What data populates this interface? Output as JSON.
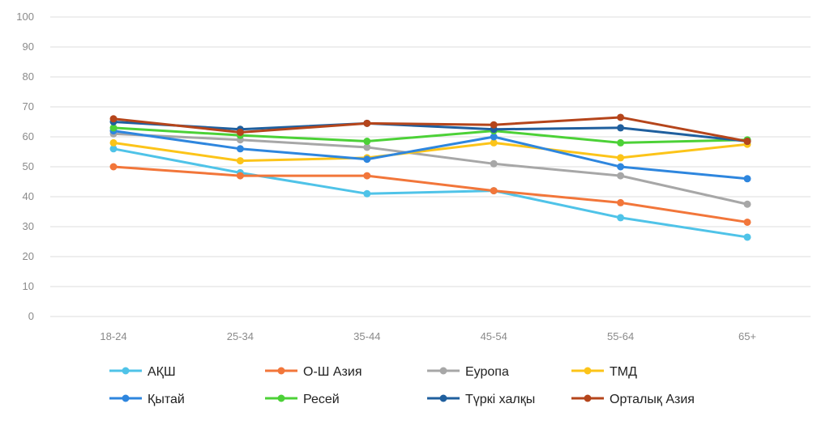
{
  "chart_data": {
    "type": "line",
    "title": "",
    "xlabel": "",
    "ylabel": "",
    "categories": [
      "18-24",
      "25-34",
      "35-44",
      "45-54",
      "55-64",
      "65+"
    ],
    "ylim": [
      0,
      100
    ],
    "yticks": [
      0,
      10,
      20,
      30,
      40,
      50,
      60,
      70,
      80,
      90,
      100
    ],
    "grid": true,
    "legend_position": "bottom",
    "series": [
      {
        "name": "АҚШ",
        "color": "#4fc3e8",
        "values": [
          56,
          48,
          41,
          42,
          33,
          26.5
        ]
      },
      {
        "name": "О-Ш Азия",
        "color": "#f2763a",
        "values": [
          50,
          47,
          47,
          42,
          38,
          31.5
        ]
      },
      {
        "name": "Еуропа",
        "color": "#a7a7a7",
        "values": [
          61,
          59,
          56.5,
          51,
          47,
          37.5
        ]
      },
      {
        "name": "ТМД",
        "color": "#fcc419",
        "values": [
          58,
          52,
          53,
          58,
          53,
          57.5
        ]
      },
      {
        "name": "Қытай",
        "color": "#2e86de",
        "values": [
          62,
          56,
          52.5,
          60,
          50,
          46
        ]
      },
      {
        "name": "Ресей",
        "color": "#4cd137",
        "values": [
          63,
          60.5,
          58.5,
          62,
          58,
          59
        ]
      },
      {
        "name": "Түркі халқы",
        "color": "#1f5f9e",
        "values": [
          65,
          62.5,
          64.5,
          62.5,
          63,
          58.5
        ]
      },
      {
        "name": "Орталық Азия",
        "color": "#b5451b",
        "values": [
          66,
          61.5,
          64.5,
          64,
          66.5,
          58.5
        ]
      }
    ]
  }
}
